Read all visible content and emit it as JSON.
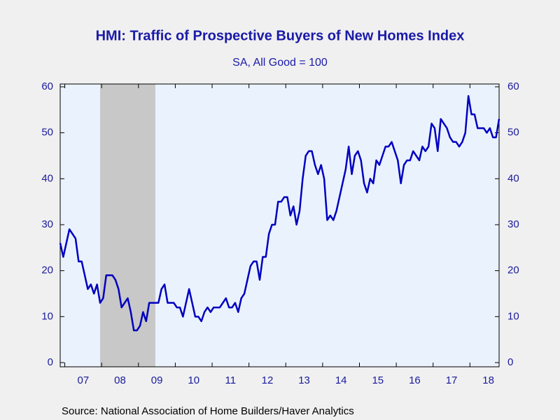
{
  "chart_data": {
    "type": "line",
    "title": "HMI: Traffic of Prospective Buyers of New Homes Index",
    "subtitle": "SA, All Good = 100",
    "source": "Source:  National Association of Home Builders/Haver Analytics",
    "categories": [
      null,
      null,
      null,
      null,
      null,
      null,
      null,
      "07",
      null,
      null,
      null,
      null,
      null,
      null,
      null,
      null,
      null,
      null,
      null,
      "08",
      null,
      null,
      null,
      null,
      null,
      null,
      null,
      null,
      null,
      null,
      null,
      "09",
      null,
      null,
      null,
      null,
      null,
      null,
      null,
      null,
      null,
      null,
      null,
      "10",
      null,
      null,
      null,
      null,
      null,
      null,
      null,
      null,
      null,
      null,
      null,
      "11",
      null,
      null,
      null,
      null,
      null,
      null,
      null,
      null,
      null,
      null,
      null,
      "12",
      null,
      null,
      null,
      null,
      null,
      null,
      null,
      null,
      null,
      null,
      null,
      "13",
      null,
      null,
      null,
      null,
      null,
      null,
      null,
      null,
      null,
      null,
      null,
      "14",
      null,
      null,
      null,
      null,
      null,
      null,
      null,
      null,
      null,
      null,
      null,
      "15",
      null,
      null,
      null,
      null,
      null,
      null,
      null,
      null,
      null,
      null,
      null,
      "16",
      null,
      null,
      null,
      null,
      null,
      null,
      null,
      null,
      null,
      null,
      null,
      "17",
      null,
      null,
      null,
      null,
      null,
      null,
      null,
      null,
      null,
      null,
      null,
      "18",
      null,
      null,
      null,
      null
    ],
    "values": [
      26,
      23,
      26,
      29,
      28,
      27,
      22,
      22,
      19,
      16,
      17,
      15,
      17,
      13,
      14,
      19,
      19,
      19,
      18,
      16,
      12,
      13,
      14,
      11,
      7,
      7,
      8,
      11,
      9,
      13,
      13,
      13,
      13,
      16,
      17,
      13,
      13,
      13,
      12,
      12,
      10,
      13,
      16,
      13,
      10,
      10,
      9,
      11,
      12,
      11,
      12,
      12,
      12,
      13,
      14,
      12,
      12,
      13,
      11,
      14,
      15,
      18,
      21,
      22,
      22,
      18,
      23,
      23,
      28,
      30,
      30,
      35,
      35,
      36,
      36,
      32,
      34,
      30,
      33,
      40,
      45,
      46,
      46,
      43,
      41,
      43,
      40,
      31,
      32,
      31,
      33,
      36,
      39,
      42,
      47,
      41,
      45,
      46,
      44,
      39,
      37,
      40,
      39,
      44,
      43,
      45,
      47,
      47,
      48,
      46,
      44,
      39,
      43,
      44,
      44,
      46,
      45,
      44,
      47,
      46,
      47,
      52,
      51,
      46,
      53,
      52,
      51,
      49,
      48,
      48,
      47,
      48,
      50,
      58,
      54,
      54,
      51,
      51,
      51,
      50,
      51,
      49,
      49,
      53
    ],
    "color": "#0000c0",
    "ylim": [
      0,
      60
    ],
    "yticks": [
      0,
      10,
      20,
      30,
      40,
      50,
      60
    ],
    "y2lim": [
      0,
      60
    ],
    "y2ticks": [
      0,
      10,
      20,
      30,
      40,
      50,
      60
    ]
  }
}
